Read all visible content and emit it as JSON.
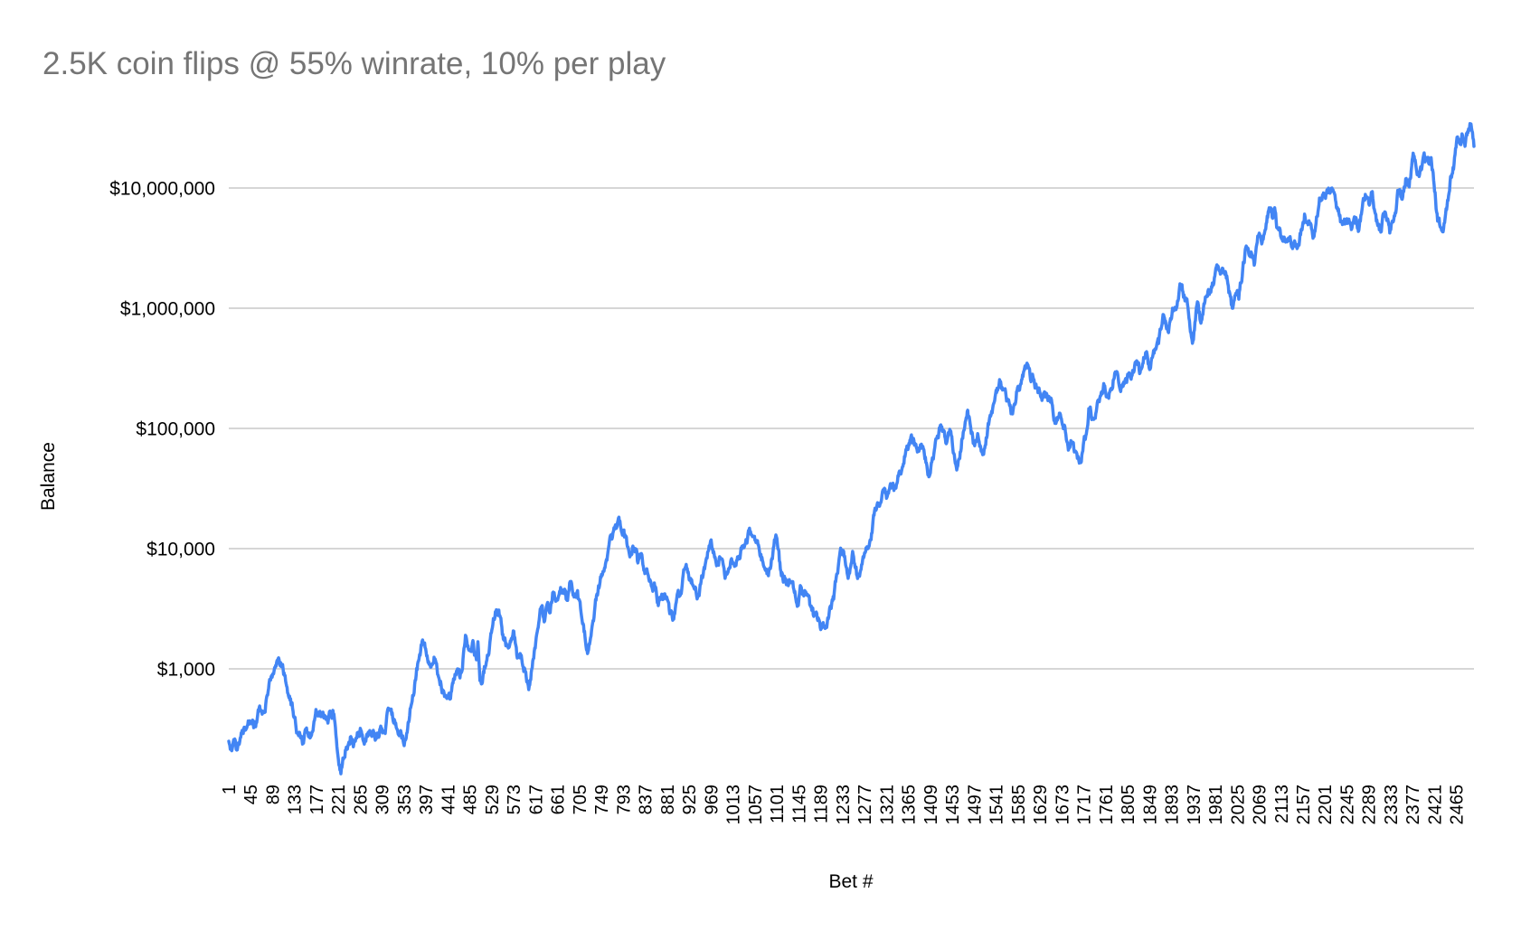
{
  "chart": {
    "title": "2.5K coin flips @ 55% winrate, 10% per play",
    "x_axis_title": "Bet #",
    "y_axis_title": "Balance",
    "colors": {
      "line": "#4285f4",
      "gridline": "#c9c9c9",
      "title_text": "#757575",
      "axis_text": "#000000",
      "background": "#ffffff"
    }
  },
  "chart_data": {
    "type": "line",
    "title": "2.5K coin flips @ 55% winrate, 10% per play",
    "xlabel": "Bet #",
    "ylabel": "Balance",
    "x_range": [
      1,
      2500
    ],
    "y_scale": "log",
    "grid": "horizontal-major-only",
    "legend": "none",
    "y_ticks": [
      {
        "label": "$1,000",
        "value": 1000
      },
      {
        "label": "$10,000",
        "value": 10000
      },
      {
        "label": "$100,000",
        "value": 100000
      },
      {
        "label": "$1,000,000",
        "value": 1000000
      },
      {
        "label": "$10,000,000",
        "value": 10000000
      }
    ],
    "x_ticks": [
      1,
      45,
      89,
      133,
      177,
      221,
      265,
      309,
      353,
      397,
      441,
      485,
      529,
      573,
      617,
      661,
      705,
      749,
      793,
      837,
      881,
      925,
      969,
      1013,
      1057,
      1101,
      1145,
      1189,
      1233,
      1277,
      1321,
      1365,
      1409,
      1453,
      1497,
      1541,
      1585,
      1629,
      1673,
      1717,
      1761,
      1805,
      1849,
      1893,
      1937,
      1981,
      2025,
      2069,
      2113,
      2157,
      2201,
      2245,
      2289,
      2333,
      2377,
      2421,
      2465
    ],
    "series": [
      {
        "name": "Balance",
        "keypoints": [
          [
            1,
            250
          ],
          [
            8,
            218
          ],
          [
            12,
            259
          ],
          [
            17,
            211
          ],
          [
            27,
            297
          ],
          [
            37,
            323
          ],
          [
            48,
            354
          ],
          [
            55,
            330
          ],
          [
            62,
            475
          ],
          [
            68,
            420
          ],
          [
            80,
            650
          ],
          [
            90,
            900
          ],
          [
            103,
            1090
          ],
          [
            110,
            1000
          ],
          [
            118,
            700
          ],
          [
            125,
            564
          ],
          [
            135,
            354
          ],
          [
            140,
            287
          ],
          [
            150,
            242
          ],
          [
            158,
            297
          ],
          [
            163,
            273
          ],
          [
            176,
            459
          ],
          [
            185,
            430
          ],
          [
            194,
            407
          ],
          [
            200,
            354
          ],
          [
            212,
            420
          ],
          [
            226,
            134
          ],
          [
            235,
            211
          ],
          [
            246,
            273
          ],
          [
            255,
            250
          ],
          [
            265,
            320
          ],
          [
            275,
            260
          ],
          [
            285,
            300
          ],
          [
            295,
            255
          ],
          [
            305,
            320
          ],
          [
            315,
            290
          ],
          [
            320,
            459
          ],
          [
            333,
            380
          ],
          [
            345,
            300
          ],
          [
            352,
            238
          ],
          [
            360,
            320
          ],
          [
            370,
            600
          ],
          [
            380,
            1100
          ],
          [
            390,
            1740
          ],
          [
            400,
            1200
          ],
          [
            413,
            1250
          ],
          [
            420,
            900
          ],
          [
            427,
            745
          ],
          [
            431,
            648
          ],
          [
            446,
            564
          ],
          [
            455,
            900
          ],
          [
            460,
            1000
          ],
          [
            465,
            840
          ],
          [
            476,
            1900
          ],
          [
            485,
            1414
          ],
          [
            492,
            1625
          ],
          [
            498,
            1189
          ],
          [
            501,
            1680
          ],
          [
            505,
            799
          ],
          [
            510,
            771
          ],
          [
            520,
            1300
          ],
          [
            530,
            2200
          ],
          [
            536,
            2980
          ],
          [
            543,
            3080
          ],
          [
            552,
            1770
          ],
          [
            558,
            1625
          ],
          [
            572,
            2070
          ],
          [
            580,
            1230
          ],
          [
            588,
            1296
          ],
          [
            596,
            950
          ],
          [
            603,
            672
          ],
          [
            615,
            1490
          ],
          [
            625,
            2830
          ],
          [
            630,
            3360
          ],
          [
            634,
            2460
          ],
          [
            640,
            3480
          ],
          [
            645,
            2920
          ],
          [
            652,
            4350
          ],
          [
            658,
            3660
          ],
          [
            667,
            4750
          ],
          [
            675,
            4600
          ],
          [
            678,
            3800
          ],
          [
            685,
            5180
          ],
          [
            695,
            4200
          ],
          [
            703,
            3800
          ],
          [
            709,
            2730
          ],
          [
            721,
            1340
          ],
          [
            733,
            2500
          ],
          [
            740,
            4200
          ],
          [
            750,
            5950
          ],
          [
            760,
            8000
          ],
          [
            770,
            12000
          ],
          [
            778,
            14700
          ],
          [
            785,
            16500
          ],
          [
            795,
            12500
          ],
          [
            800,
            11000
          ],
          [
            812,
            10500
          ],
          [
            818,
            9850
          ],
          [
            822,
            7600
          ],
          [
            826,
            9000
          ],
          [
            838,
            6500
          ],
          [
            845,
            5350
          ],
          [
            855,
            5180
          ],
          [
            863,
            3360
          ],
          [
            875,
            4200
          ],
          [
            885,
            3080
          ],
          [
            894,
            2590
          ],
          [
            905,
            4000
          ],
          [
            917,
            6950
          ],
          [
            930,
            5500
          ],
          [
            943,
            4130
          ],
          [
            955,
            7000
          ],
          [
            963,
            9500
          ],
          [
            970,
            10900
          ],
          [
            985,
            8250
          ],
          [
            997,
            5660
          ],
          [
            1010,
            8250
          ],
          [
            1030,
            9850
          ],
          [
            1048,
            13900
          ],
          [
            1060,
            11700
          ],
          [
            1072,
            8000
          ],
          [
            1084,
            5950
          ],
          [
            1099,
            13000
          ],
          [
            1108,
            6730
          ],
          [
            1115,
            5660
          ],
          [
            1124,
            4920
          ],
          [
            1132,
            5180
          ],
          [
            1144,
            3360
          ],
          [
            1150,
            4750
          ],
          [
            1160,
            4210
          ],
          [
            1168,
            3360
          ],
          [
            1175,
            2730
          ],
          [
            1180,
            2970
          ],
          [
            1190,
            2210
          ],
          [
            1199,
            2260
          ],
          [
            1215,
            3790
          ],
          [
            1224,
            6950
          ],
          [
            1235,
            9500
          ],
          [
            1244,
            5660
          ],
          [
            1253,
            9500
          ],
          [
            1262,
            5950
          ],
          [
            1270,
            6730
          ],
          [
            1284,
            10000
          ],
          [
            1296,
            18900
          ],
          [
            1307,
            22500
          ],
          [
            1314,
            30800
          ],
          [
            1322,
            26800
          ],
          [
            1335,
            31900
          ],
          [
            1345,
            40000
          ],
          [
            1357,
            58300
          ],
          [
            1365,
            70000
          ],
          [
            1375,
            82700
          ],
          [
            1383,
            63700
          ],
          [
            1390,
            71900
          ],
          [
            1400,
            52000
          ],
          [
            1407,
            40100
          ],
          [
            1418,
            70000
          ],
          [
            1429,
            106000
          ],
          [
            1440,
            75600
          ],
          [
            1450,
            95000
          ],
          [
            1462,
            45100
          ],
          [
            1472,
            80000
          ],
          [
            1483,
            138000
          ],
          [
            1496,
            75600
          ],
          [
            1505,
            85500
          ],
          [
            1514,
            60500
          ],
          [
            1525,
            110000
          ],
          [
            1538,
            170000
          ],
          [
            1550,
            245000
          ],
          [
            1560,
            202000
          ],
          [
            1574,
            132000
          ],
          [
            1583,
            206000
          ],
          [
            1597,
            302000
          ],
          [
            1601,
            330000
          ],
          [
            1610,
            254000
          ],
          [
            1615,
            268000
          ],
          [
            1628,
            206000
          ],
          [
            1635,
            180000
          ],
          [
            1642,
            196000
          ],
          [
            1652,
            174000
          ],
          [
            1661,
            110000
          ],
          [
            1668,
            134000
          ],
          [
            1677,
            106000
          ],
          [
            1686,
            66000
          ],
          [
            1692,
            75600
          ],
          [
            1698,
            63700
          ],
          [
            1704,
            56400
          ],
          [
            1713,
            60000
          ],
          [
            1722,
            89900
          ],
          [
            1727,
            146000
          ],
          [
            1735,
            120000
          ],
          [
            1750,
            186000
          ],
          [
            1758,
            225000
          ],
          [
            1765,
            186000
          ],
          [
            1779,
            287000
          ],
          [
            1792,
            220000
          ],
          [
            1800,
            254000
          ],
          [
            1810,
            277000
          ],
          [
            1824,
            360000
          ],
          [
            1830,
            291000
          ],
          [
            1842,
            430000
          ],
          [
            1848,
            320000
          ],
          [
            1855,
            394000
          ],
          [
            1867,
            508000
          ],
          [
            1877,
            884000
          ],
          [
            1886,
            639000
          ],
          [
            1895,
            1000000
          ],
          [
            1913,
            1540000
          ],
          [
            1920,
            1150000
          ],
          [
            1924,
            1190000
          ],
          [
            1933,
            577000
          ],
          [
            1936,
            536000
          ],
          [
            1945,
            1130000
          ],
          [
            1951,
            777000
          ],
          [
            1967,
            1430000
          ],
          [
            1972,
            1360000
          ],
          [
            1980,
            1860000
          ],
          [
            1987,
            2200000
          ],
          [
            1996,
            2140000
          ],
          [
            2004,
            1860000
          ],
          [
            2013,
            1070000
          ],
          [
            2015,
            1000000
          ],
          [
            2024,
            1360000
          ],
          [
            2028,
            1190000
          ],
          [
            2042,
            3200000
          ],
          [
            2052,
            2860000
          ],
          [
            2059,
            2280000
          ],
          [
            2068,
            4060000
          ],
          [
            2077,
            3730000
          ],
          [
            2088,
            6500000
          ],
          [
            2096,
            5600000
          ],
          [
            2100,
            6860000
          ],
          [
            2104,
            4700000
          ],
          [
            2113,
            3870000
          ],
          [
            2124,
            3600000
          ],
          [
            2131,
            3940000
          ],
          [
            2146,
            3200000
          ],
          [
            2160,
            6060000
          ],
          [
            2172,
            5080000
          ],
          [
            2179,
            3940000
          ],
          [
            2191,
            8100000
          ],
          [
            2200,
            8850000
          ],
          [
            2215,
            10000000
          ],
          [
            2224,
            6860000
          ],
          [
            2233,
            5300000
          ],
          [
            2242,
            5080000
          ],
          [
            2255,
            4620000
          ],
          [
            2264,
            5500000
          ],
          [
            2269,
            4460000
          ],
          [
            2282,
            8850000
          ],
          [
            2290,
            7200000
          ],
          [
            2294,
            9200000
          ],
          [
            2306,
            5080000
          ],
          [
            2313,
            4300000
          ],
          [
            2322,
            6300000
          ],
          [
            2331,
            4230000
          ],
          [
            2349,
            9600000
          ],
          [
            2355,
            8100000
          ],
          [
            2364,
            12000000
          ],
          [
            2370,
            10200000
          ],
          [
            2378,
            19500000
          ],
          [
            2387,
            13400000
          ],
          [
            2395,
            14300000
          ],
          [
            2404,
            17000000
          ],
          [
            2410,
            15800000
          ],
          [
            2414,
            17900000
          ],
          [
            2422,
            9200000
          ],
          [
            2427,
            5300000
          ],
          [
            2433,
            4700000
          ],
          [
            2440,
            5080000
          ],
          [
            2449,
            8600000
          ],
          [
            2454,
            12600000
          ],
          [
            2460,
            15800000
          ],
          [
            2467,
            26600000
          ],
          [
            2472,
            23200000
          ],
          [
            2477,
            27500000
          ],
          [
            2482,
            22200000
          ],
          [
            2494,
            34100000
          ],
          [
            2500,
            22200000
          ]
        ]
      }
    ]
  }
}
